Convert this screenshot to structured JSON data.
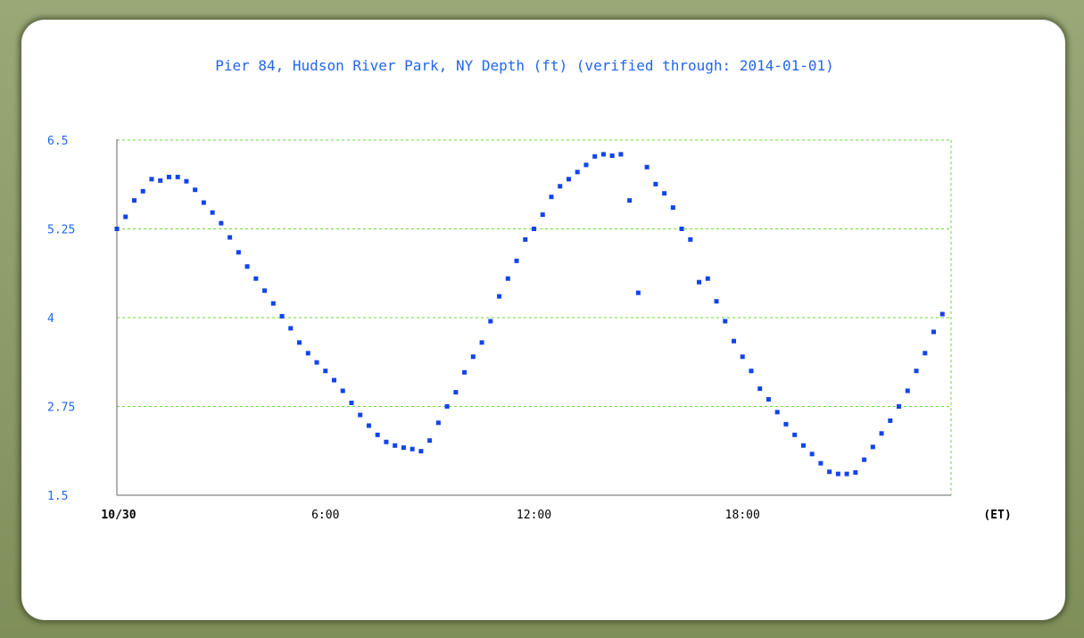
{
  "chart_data": {
    "type": "scatter",
    "title": "Pier 84, Hudson River Park, NY Depth (ft) (verified through: 2014-01-01)",
    "xlabel": "",
    "ylabel": "",
    "ylim": [
      1.5,
      6.5
    ],
    "xlim": [
      0,
      24
    ],
    "yticks": [
      "6.5",
      "5.25",
      "4",
      "2.75",
      "1.5"
    ],
    "ytick_values": [
      6.5,
      5.25,
      4,
      2.75,
      1.5
    ],
    "xticks": [
      {
        "label": "10/30",
        "value": 0,
        "bold": true
      },
      {
        "label": "6:00",
        "value": 6,
        "bold": false
      },
      {
        "label": "12:00",
        "value": 12,
        "bold": false
      },
      {
        "label": "18:00",
        "value": 18,
        "bold": false
      }
    ],
    "x_unit_label": "(ET)",
    "grid": true,
    "series": [
      {
        "color": "#1144ee",
        "x": [
          0.0,
          0.25,
          0.5,
          0.75,
          1.0,
          1.25,
          1.5,
          1.75,
          2.0,
          2.25,
          2.5,
          2.75,
          3.0,
          3.25,
          3.5,
          3.75,
          4.0,
          4.25,
          4.5,
          4.75,
          5.0,
          5.25,
          5.5,
          5.75,
          6.0,
          6.25,
          6.5,
          6.75,
          7.0,
          7.25,
          7.5,
          7.75,
          8.0,
          8.25,
          8.5,
          8.75,
          9.0,
          9.25,
          9.5,
          9.75,
          10.0,
          10.25,
          10.5,
          10.75,
          11.0,
          11.25,
          11.5,
          11.75,
          12.0,
          12.25,
          12.5,
          12.75,
          13.0,
          13.25,
          13.5,
          13.75,
          14.0,
          14.25,
          14.5,
          14.75,
          15.0,
          15.25,
          15.5,
          15.75,
          16.0,
          16.25,
          16.5,
          16.75,
          17.0,
          17.25,
          17.5,
          17.75,
          18.0,
          18.25,
          18.5,
          18.75,
          19.0,
          19.25,
          19.5,
          19.75,
          20.0,
          20.25,
          20.5,
          20.75,
          21.0,
          21.25,
          21.5,
          21.75,
          22.0,
          22.25,
          22.5,
          22.75,
          23.0,
          23.25,
          23.5,
          23.75
        ],
        "y": [
          5.25,
          5.42,
          5.65,
          5.78,
          5.95,
          5.93,
          5.98,
          5.98,
          5.92,
          5.8,
          5.62,
          5.48,
          5.33,
          5.13,
          4.92,
          4.72,
          4.55,
          4.38,
          4.2,
          4.02,
          3.85,
          3.65,
          3.5,
          3.37,
          3.25,
          3.12,
          2.97,
          2.8,
          2.63,
          2.48,
          2.35,
          2.25,
          2.2,
          2.17,
          2.15,
          2.12,
          2.27,
          2.52,
          2.75,
          2.95,
          3.23,
          3.45,
          3.65,
          3.95,
          4.3,
          4.55,
          4.8,
          5.1,
          5.25,
          5.45,
          5.7,
          5.85,
          5.95,
          6.05,
          6.15,
          6.27,
          6.3,
          6.28,
          6.3,
          5.65,
          4.35,
          6.12,
          5.88,
          5.75,
          5.55,
          5.25,
          5.1,
          4.5,
          4.55,
          4.23,
          3.95,
          3.67,
          3.45,
          3.25,
          3.0,
          2.85,
          2.67,
          2.5,
          2.35,
          2.2,
          2.08,
          1.95,
          1.83,
          1.8,
          1.8,
          1.82,
          2.0,
          2.18,
          2.37,
          2.55,
          2.75,
          2.97,
          3.25,
          3.5,
          3.8,
          4.05
        ]
      }
    ]
  }
}
